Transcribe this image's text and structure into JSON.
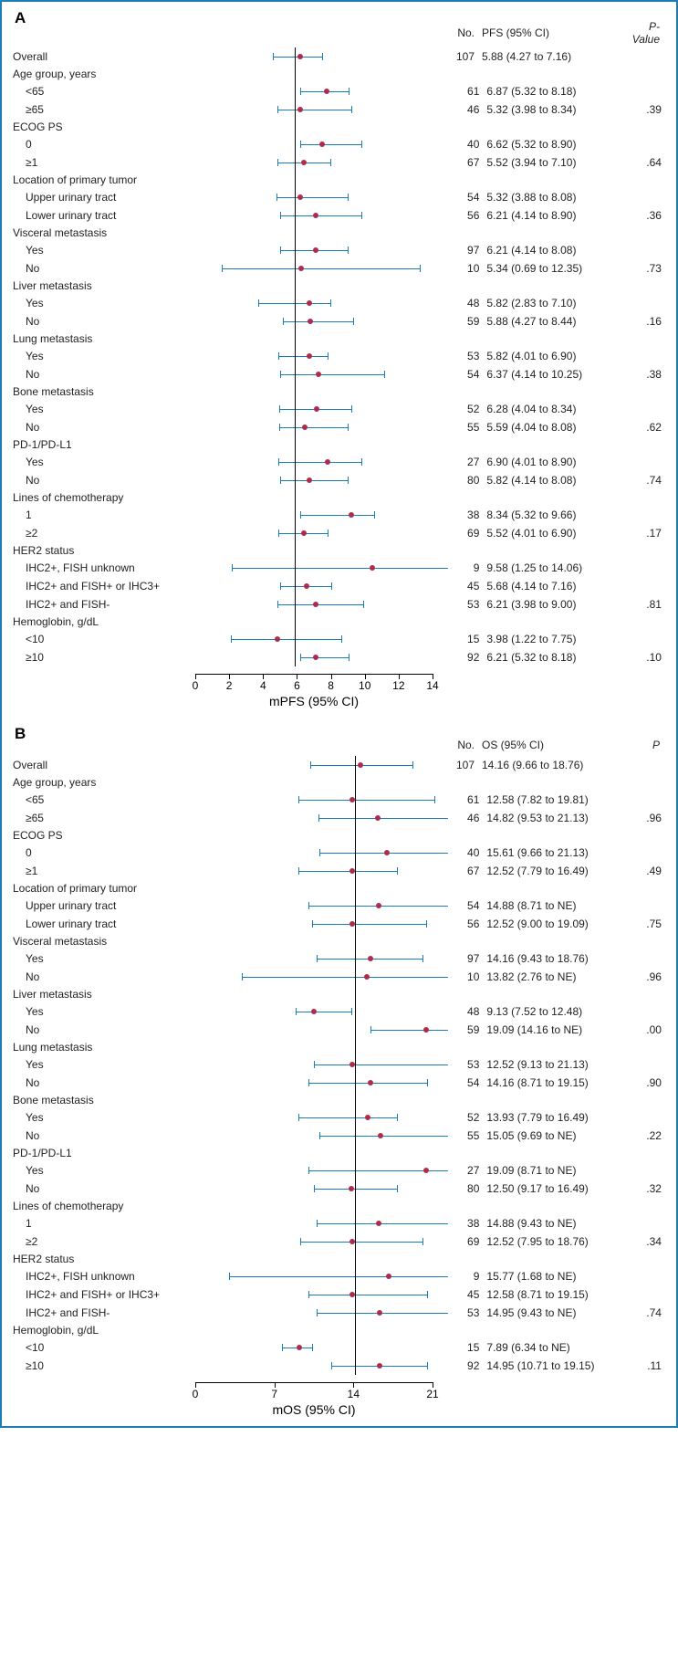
{
  "colors": {
    "border": "#1a7db8",
    "ci_line": "#1a7db8",
    "dot": "#b02a4c",
    "text": "#222222"
  },
  "panel_a": {
    "label": "A",
    "header": {
      "no": "No.",
      "ci": "PFS (95% CI)",
      "p": "P-Value"
    },
    "x_axis": {
      "min": 0,
      "max": 14,
      "step": 2,
      "ref": 5.88,
      "title": "mPFS (95% CI)"
    },
    "rows": [
      {
        "type": "data",
        "label": "Overall",
        "no": 107,
        "est": 5.88,
        "lo": 4.27,
        "hi": 7.16,
        "p": ""
      },
      {
        "type": "group",
        "label": "Age group, years"
      },
      {
        "type": "data",
        "sub": true,
        "label": "<65",
        "no": 61,
        "est": 6.87,
        "lo": 5.32,
        "hi": 8.18,
        "p": ""
      },
      {
        "type": "data",
        "sub": true,
        "label": "≥65",
        "no": 46,
        "est": 5.32,
        "lo": 3.98,
        "hi": 8.34,
        "p": ".39"
      },
      {
        "type": "group",
        "label": "ECOG PS"
      },
      {
        "type": "data",
        "sub": true,
        "label": "0",
        "no": 40,
        "est": 6.62,
        "lo": 5.32,
        "hi": 8.9,
        "p": ""
      },
      {
        "type": "data",
        "sub": true,
        "label": "≥1",
        "no": 67,
        "est": 5.52,
        "lo": 3.94,
        "hi": 7.1,
        "p": ".64"
      },
      {
        "type": "group",
        "label": "Location of primary tumor"
      },
      {
        "type": "data",
        "sub": true,
        "label": "Upper urinary tract",
        "no": 54,
        "est": 5.32,
        "lo": 3.88,
        "hi": 8.08,
        "p": ""
      },
      {
        "type": "data",
        "sub": true,
        "label": "Lower urinary tract",
        "no": 56,
        "est": 6.21,
        "lo": 4.14,
        "hi": 8.9,
        "p": ".36"
      },
      {
        "type": "group",
        "label": "Visceral metastasis"
      },
      {
        "type": "data",
        "sub": true,
        "label": "Yes",
        "no": 97,
        "est": 6.21,
        "lo": 4.14,
        "hi": 8.08,
        "p": ""
      },
      {
        "type": "data",
        "sub": true,
        "label": "No",
        "no": 10,
        "est": 5.34,
        "lo": 0.69,
        "hi": 12.35,
        "p": ".73"
      },
      {
        "type": "group",
        "label": "Liver metastasis"
      },
      {
        "type": "data",
        "sub": true,
        "label": "Yes",
        "no": 48,
        "est": 5.82,
        "lo": 2.83,
        "hi": 7.1,
        "p": ""
      },
      {
        "type": "data",
        "sub": true,
        "label": "No",
        "no": 59,
        "est": 5.88,
        "lo": 4.27,
        "hi": 8.44,
        "p": ".16"
      },
      {
        "type": "group",
        "label": "Lung metastasis"
      },
      {
        "type": "data",
        "sub": true,
        "label": "Yes",
        "no": 53,
        "est": 5.82,
        "lo": 4.01,
        "hi": 6.9,
        "p": ""
      },
      {
        "type": "data",
        "sub": true,
        "label": "No",
        "no": 54,
        "est": 6.37,
        "lo": 4.14,
        "hi": 10.25,
        "p": ".38"
      },
      {
        "type": "group",
        "label": "Bone metastasis"
      },
      {
        "type": "data",
        "sub": true,
        "label": "Yes",
        "no": 52,
        "est": 6.28,
        "lo": 4.04,
        "hi": 8.34,
        "p": ""
      },
      {
        "type": "data",
        "sub": true,
        "label": "No",
        "no": 55,
        "est": 5.59,
        "lo": 4.04,
        "hi": 8.08,
        "p": ".62"
      },
      {
        "type": "group",
        "label": "PD-1/PD-L1"
      },
      {
        "type": "data",
        "sub": true,
        "label": "Yes",
        "no": 27,
        "est": 6.9,
        "lo": 4.01,
        "hi": 8.9,
        "p": ""
      },
      {
        "type": "data",
        "sub": true,
        "label": "No",
        "no": 80,
        "est": 5.82,
        "lo": 4.14,
        "hi": 8.08,
        "p": ".74"
      },
      {
        "type": "group",
        "label": "Lines of chemotherapy"
      },
      {
        "type": "data",
        "sub": true,
        "label": "1",
        "no": 38,
        "est": 8.34,
        "lo": 5.32,
        "hi": 9.66,
        "p": ""
      },
      {
        "type": "data",
        "sub": true,
        "label": "≥2",
        "no": 69,
        "est": 5.52,
        "lo": 4.01,
        "hi": 6.9,
        "p": ".17"
      },
      {
        "type": "group",
        "label": "HER2 status"
      },
      {
        "type": "data",
        "sub": true,
        "label": "IHC2+, FISH unknown",
        "no": 9,
        "est": 9.58,
        "lo": 1.25,
        "hi": 14.06,
        "hi_ne": true,
        "p": ""
      },
      {
        "type": "data",
        "sub": true,
        "label": "IHC2+ and FISH+ or IHC3+",
        "no": 45,
        "est": 5.68,
        "lo": 4.14,
        "hi": 7.16,
        "p": ""
      },
      {
        "type": "data",
        "sub": true,
        "label": "IHC2+ and FISH-",
        "no": 53,
        "est": 6.21,
        "lo": 3.98,
        "hi": 9.0,
        "p": ".81"
      },
      {
        "type": "group",
        "label": "Hemoglobin, g/dL"
      },
      {
        "type": "data",
        "sub": true,
        "label": "<10",
        "no": 15,
        "est": 3.98,
        "lo": 1.22,
        "hi": 7.75,
        "p": ""
      },
      {
        "type": "data",
        "sub": true,
        "label": "≥10",
        "no": 92,
        "est": 6.21,
        "lo": 5.32,
        "hi": 8.18,
        "p": ".10"
      }
    ]
  },
  "panel_b": {
    "label": "B",
    "header": {
      "no": "No.",
      "ci": "OS (95% CI)",
      "p": "P"
    },
    "x_axis": {
      "min": 0,
      "max": 21,
      "step": 7,
      "ref": 14.16,
      "title": "mOS (95% CI)"
    },
    "rows": [
      {
        "type": "data",
        "label": "Overall",
        "no": 107,
        "est": 14.16,
        "lo": 9.66,
        "hi": 18.76,
        "p": ""
      },
      {
        "type": "group",
        "label": "Age group, years"
      },
      {
        "type": "data",
        "sub": true,
        "label": "<65",
        "no": 61,
        "est": 12.58,
        "lo": 7.82,
        "hi": 19.81,
        "p": ""
      },
      {
        "type": "data",
        "sub": true,
        "label": "≥65",
        "no": 46,
        "est": 14.82,
        "lo": 9.53,
        "hi": 21.13,
        "hi_ne": true,
        "p": ".96"
      },
      {
        "type": "group",
        "label": "ECOG PS"
      },
      {
        "type": "data",
        "sub": true,
        "label": "0",
        "no": 40,
        "est": 15.61,
        "lo": 9.66,
        "hi": 21.13,
        "hi_ne": true,
        "p": ""
      },
      {
        "type": "data",
        "sub": true,
        "label": "≥1",
        "no": 67,
        "est": 12.52,
        "lo": 7.79,
        "hi": 16.49,
        "p": ".49"
      },
      {
        "type": "group",
        "label": "Location of primary tumor"
      },
      {
        "type": "data",
        "sub": true,
        "label": "Upper urinary tract",
        "no": 54,
        "est": 14.88,
        "lo": 8.71,
        "hi": 21,
        "hi_ne": true,
        "hi_text": "NE",
        "p": ""
      },
      {
        "type": "data",
        "sub": true,
        "label": "Lower urinary tract",
        "no": 56,
        "est": 12.52,
        "lo": 9.0,
        "hi": 19.09,
        "p": ".75"
      },
      {
        "type": "group",
        "label": "Visceral metastasis"
      },
      {
        "type": "data",
        "sub": true,
        "label": "Yes",
        "no": 97,
        "est": 14.16,
        "lo": 9.43,
        "hi": 18.76,
        "p": ""
      },
      {
        "type": "data",
        "sub": true,
        "label": "No",
        "no": 10,
        "est": 13.82,
        "lo": 2.76,
        "hi": 21,
        "hi_ne": true,
        "hi_text": "NE",
        "p": ".96"
      },
      {
        "type": "group",
        "label": "Liver metastasis"
      },
      {
        "type": "data",
        "sub": true,
        "label": "Yes",
        "no": 48,
        "est": 9.13,
        "lo": 7.52,
        "hi": 12.48,
        "p": ""
      },
      {
        "type": "data",
        "sub": true,
        "label": "No",
        "no": 59,
        "est": 19.09,
        "lo": 14.16,
        "hi": 21,
        "hi_ne": true,
        "hi_text": "NE",
        "p": ".00"
      },
      {
        "type": "group",
        "label": "Lung metastasis"
      },
      {
        "type": "data",
        "sub": true,
        "label": "Yes",
        "no": 53,
        "est": 12.52,
        "lo": 9.13,
        "hi": 21.13,
        "hi_ne": true,
        "p": ""
      },
      {
        "type": "data",
        "sub": true,
        "label": "No",
        "no": 54,
        "est": 14.16,
        "lo": 8.71,
        "hi": 19.15,
        "p": ".90"
      },
      {
        "type": "group",
        "label": "Bone metastasis"
      },
      {
        "type": "data",
        "sub": true,
        "label": "Yes",
        "no": 52,
        "est": 13.93,
        "lo": 7.79,
        "hi": 16.49,
        "p": ""
      },
      {
        "type": "data",
        "sub": true,
        "label": "No",
        "no": 55,
        "est": 15.05,
        "lo": 9.69,
        "hi": 21,
        "hi_ne": true,
        "hi_text": "NE",
        "p": ".22"
      },
      {
        "type": "group",
        "label": "PD-1/PD-L1"
      },
      {
        "type": "data",
        "sub": true,
        "label": "Yes",
        "no": 27,
        "est": 19.09,
        "lo": 8.71,
        "hi": 21,
        "hi_ne": true,
        "hi_text": "NE",
        "p": ""
      },
      {
        "type": "data",
        "sub": true,
        "label": "No",
        "no": 80,
        "est": 12.5,
        "lo": 9.17,
        "hi": 16.49,
        "p": ".32"
      },
      {
        "type": "group",
        "label": "Lines of chemotherapy"
      },
      {
        "type": "data",
        "sub": true,
        "label": "1",
        "no": 38,
        "est": 14.88,
        "lo": 9.43,
        "hi": 21,
        "hi_ne": true,
        "hi_text": "NE",
        "p": ""
      },
      {
        "type": "data",
        "sub": true,
        "label": "≥2",
        "no": 69,
        "est": 12.52,
        "lo": 7.95,
        "hi": 18.76,
        "p": ".34"
      },
      {
        "type": "group",
        "label": "HER2 status"
      },
      {
        "type": "data",
        "sub": true,
        "label": "IHC2+, FISH unknown",
        "no": 9,
        "est": 15.77,
        "lo": 1.68,
        "hi": 21,
        "hi_ne": true,
        "hi_text": "NE",
        "p": ""
      },
      {
        "type": "data",
        "sub": true,
        "label": "IHC2+ and FISH+ or IHC3+",
        "no": 45,
        "est": 12.58,
        "lo": 8.71,
        "hi": 19.15,
        "p": ""
      },
      {
        "type": "data",
        "sub": true,
        "label": "IHC2+ and FISH-",
        "no": 53,
        "est": 14.95,
        "lo": 9.43,
        "hi": 21,
        "hi_ne": true,
        "hi_text": "NE",
        "p": ".74"
      },
      {
        "type": "group",
        "label": "Hemoglobin, g/dL"
      },
      {
        "type": "data",
        "sub": true,
        "label": "<10",
        "no": 15,
        "est": 7.89,
        "lo": 6.34,
        "hi": 21,
        "hi_ne": true,
        "hi_text": "NE",
        "short_hi": 9,
        "p": ""
      },
      {
        "type": "data",
        "sub": true,
        "label": "≥10",
        "no": 92,
        "est": 14.95,
        "lo": 10.71,
        "hi": 19.15,
        "p": ".11"
      }
    ]
  }
}
